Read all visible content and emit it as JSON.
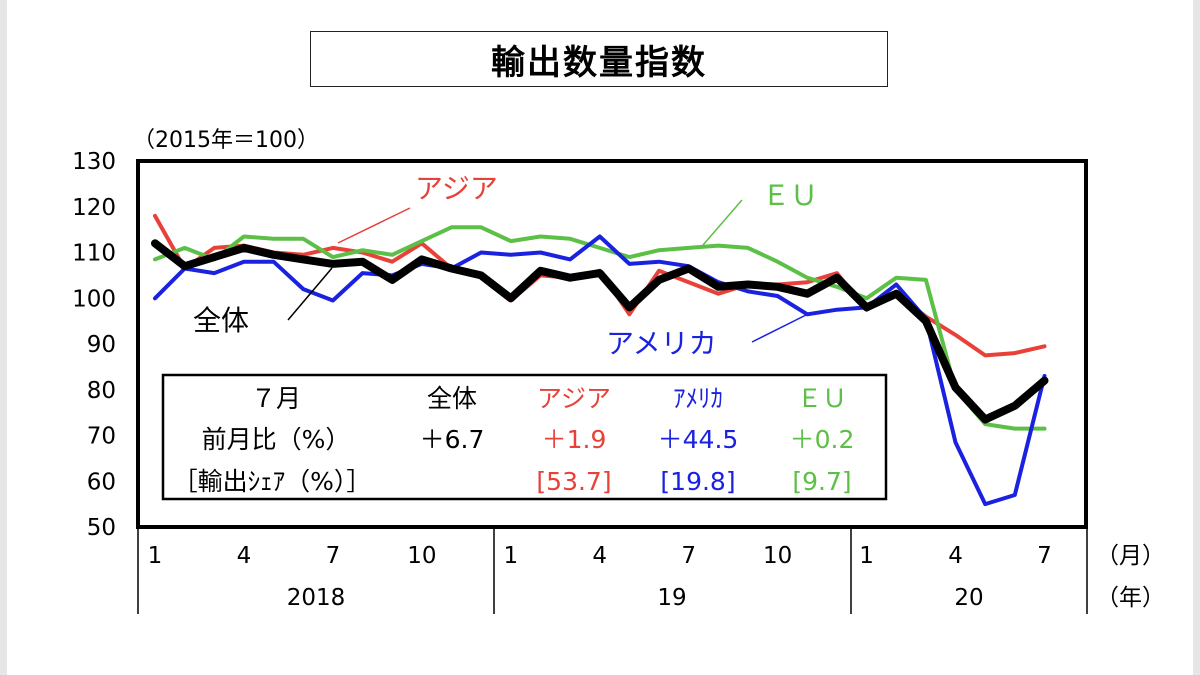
{
  "title": "輸出数量指数",
  "chart_data": {
    "type": "line",
    "title": "輸出数量指数",
    "unit_note": "（2015年＝100）",
    "ylim": [
      50,
      130
    ],
    "yticks": [
      "50",
      "60",
      "70",
      "80",
      "90",
      "100",
      "110",
      "120",
      "130"
    ],
    "xticks": [
      "1",
      "4",
      "7",
      "10",
      "1",
      "4",
      "7",
      "10",
      "1",
      "4",
      "7"
    ],
    "year_labels": [
      "2018",
      "19",
      "20"
    ],
    "x_unit": "（月）",
    "year_unit": "（年）",
    "months": [
      "2018-01",
      "2018-02",
      "2018-03",
      "2018-04",
      "2018-05",
      "2018-06",
      "2018-07",
      "2018-08",
      "2018-09",
      "2018-10",
      "2018-11",
      "2018-12",
      "2019-01",
      "2019-02",
      "2019-03",
      "2019-04",
      "2019-05",
      "2019-06",
      "2019-07",
      "2019-08",
      "2019-09",
      "2019-10",
      "2019-11",
      "2019-12",
      "2020-01",
      "2020-02",
      "2020-03",
      "2020-04",
      "2020-05",
      "2020-06",
      "2020-07"
    ],
    "series": [
      {
        "name": "アジア",
        "color": "#e8413a",
        "width": 4,
        "values": [
          118,
          106.5,
          111,
          111.5,
          110,
          109.5,
          111,
          110,
          108,
          112,
          106.5,
          105,
          99.5,
          105,
          104.5,
          106,
          96.5,
          106,
          103.5,
          101,
          103,
          103,
          103.5,
          105.5,
          97.5,
          101,
          96,
          92,
          87.5,
          88,
          89.5
        ]
      },
      {
        "name": "ＥＵ",
        "color": "#5cbf46",
        "width": 4,
        "values": [
          108.5,
          111,
          108.5,
          113.5,
          113,
          113,
          109,
          110.5,
          109.5,
          112.5,
          115.5,
          115.5,
          112.5,
          113.5,
          113,
          111,
          109,
          110.5,
          111,
          111.5,
          111,
          108,
          104.5,
          102.5,
          100,
          104.5,
          104,
          80,
          72.5,
          71.5,
          71.5
        ]
      },
      {
        "name": "アメリカ",
        "color": "#1a22e0",
        "width": 4,
        "values": [
          100,
          106.5,
          105.5,
          108,
          108,
          102,
          99.5,
          105.5,
          105,
          107.5,
          106.5,
          110,
          109.5,
          110,
          108.5,
          113.5,
          107.5,
          108,
          107,
          103.5,
          101.5,
          100.5,
          96.5,
          97.5,
          98,
          103,
          95.5,
          68.5,
          55,
          57,
          83
        ]
      },
      {
        "name": "全体",
        "color": "#000000",
        "width": 8,
        "values": [
          112,
          107,
          109,
          111,
          109.5,
          108.5,
          107.5,
          108,
          104,
          108.5,
          106.5,
          105,
          100,
          106,
          104.5,
          105.5,
          98,
          104,
          106.5,
          102.5,
          103,
          102.5,
          101,
          104.5,
          98,
          101,
          95,
          80.5,
          73.5,
          76.5,
          82
        ]
      }
    ],
    "annotations": [
      {
        "label": "アジア",
        "color": "#e8413a"
      },
      {
        "label": "ＥＵ",
        "color": "#5cbf46"
      },
      {
        "label": "全体",
        "color": "#000000"
      },
      {
        "label": "アメリカ",
        "color": "#1a22e0"
      }
    ],
    "table": {
      "header": [
        "７月",
        "全体",
        "アジア",
        "ｱﾒﾘｶ",
        "ＥＵ"
      ],
      "row_yoy_label": "前月比（%）",
      "row_yoy": [
        "＋6.7",
        "＋1.9",
        "＋44.5",
        "＋0.2"
      ],
      "row_share_label": "［輸出ｼｪｱ（%）］",
      "row_share": [
        "[53.7]",
        "[19.8]",
        "[9.7]"
      ]
    }
  }
}
